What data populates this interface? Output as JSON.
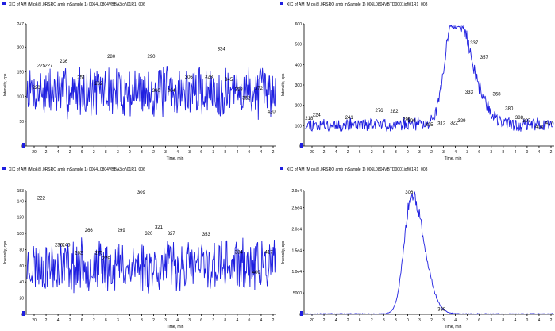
{
  "chart_data": [
    {
      "type": "line",
      "title": "XIC of AM (M pk@.0RSRO amb mSample 1) 0064L0804VBBA3jof\\01R1_006",
      "xlabel": "Time, min",
      "ylabel": "Intensity, cps",
      "ylim": [
        0,
        247
      ],
      "yticks": [
        "247",
        "200",
        "150",
        "100",
        "50",
        "0"
      ],
      "ytick_values": [
        247,
        200,
        150,
        100,
        50,
        0
      ],
      "xticks": [
        "20",
        "2",
        "4",
        "2",
        "6",
        "2",
        "8",
        "3",
        "0",
        "3",
        "2",
        "3",
        "4",
        "3",
        "6",
        "3",
        "8",
        "4",
        "0",
        "4",
        "2"
      ],
      "peak_labels": [
        "220",
        "225",
        "227",
        "236",
        "251",
        "262",
        "280",
        "290",
        "300",
        "304",
        "306",
        "328",
        "334",
        "345",
        "358",
        "362",
        "372",
        "420"
      ],
      "peak_label_x": [
        0.04,
        0.06,
        0.09,
        0.15,
        0.22,
        0.29,
        0.34,
        0.5,
        0.52,
        0.58,
        0.65,
        0.73,
        0.78,
        0.81,
        0.85,
        0.88,
        0.93,
        0.98
      ],
      "peak_label_y": [
        112,
        156,
        156,
        165,
        132,
        120,
        175,
        175,
        106,
        106,
        133,
        134,
        190,
        128,
        108,
        91,
        111,
        63
      ],
      "series": [
        {
          "noise_mean": 110,
          "noise_amp": 45,
          "points": 420,
          "seed": 7
        }
      ]
    },
    {
      "type": "line",
      "title": "XIC of AM (M pk@.0RSRO amb mSample 1) 006L0804VBTD0001jof\\01R1_008",
      "xlabel": "Time, min",
      "ylabel": "Intensity, cps",
      "ylim": [
        0,
        600
      ],
      "yticks": [
        "600",
        "500",
        "400",
        "300",
        "200",
        "100",
        "0"
      ],
      "ytick_values": [
        600,
        500,
        400,
        300,
        200,
        100,
        0
      ],
      "xticks": [
        "20",
        "2",
        "4",
        "2",
        "6",
        "2",
        "8",
        "3",
        "0",
        "3",
        "2",
        "3",
        "4",
        "3",
        "6",
        "3",
        "8",
        "4",
        "0",
        "4",
        "2"
      ],
      "peak_labels": [
        "218",
        "224",
        "241",
        "276",
        "282",
        "295",
        "300",
        "305",
        "312",
        "322",
        "329",
        "333",
        "337",
        "357",
        "368",
        "380",
        "388",
        "397",
        "403",
        "417"
      ],
      "peak_label_x": [
        0.02,
        0.05,
        0.18,
        0.3,
        0.36,
        0.41,
        0.43,
        0.5,
        0.55,
        0.6,
        0.63,
        0.66,
        0.68,
        0.72,
        0.77,
        0.82,
        0.86,
        0.89,
        0.94,
        0.98
      ],
      "peak_label_y": [
        120,
        138,
        125,
        160,
        155,
        115,
        110,
        90,
        95,
        100,
        110,
        250,
        490,
        420,
        240,
        170,
        125,
        110,
        80,
        100
      ],
      "series": [
        {
          "noise_mean": 105,
          "noise_amp": 28,
          "peak_center": 0.6,
          "peak_height": 560,
          "peak_width": 0.035,
          "tail": 0.07,
          "points": 420,
          "seed": 11
        }
      ]
    },
    {
      "type": "line",
      "title": "XIC of AM (M pk@.0RSRO amb mSample 1) 0064L0804VBBA3jof\\01R1_006",
      "xlabel": "Time, min",
      "ylabel": "Intensity, cps",
      "ylim": [
        0,
        153
      ],
      "yticks": [
        "153",
        "140",
        "120",
        "100",
        "80",
        "60",
        "40",
        "20",
        "0"
      ],
      "ytick_values": [
        153,
        140,
        120,
        100,
        80,
        60,
        40,
        20,
        0
      ],
      "xticks": [
        "20",
        "2",
        "4",
        "2",
        "6",
        "2",
        "8",
        "3",
        "0",
        "3",
        "2",
        "3",
        "4",
        "3",
        "6",
        "3",
        "8",
        "4",
        "0",
        "4",
        "2"
      ],
      "peak_labels": [
        "222",
        "236",
        "245",
        "262",
        "266",
        "275",
        "279",
        "299",
        "309",
        "320",
        "321",
        "327",
        "353",
        "384",
        "400",
        "417"
      ],
      "peak_label_x": [
        0.06,
        0.13,
        0.16,
        0.21,
        0.25,
        0.29,
        0.32,
        0.38,
        0.46,
        0.49,
        0.53,
        0.58,
        0.72,
        0.85,
        0.92,
        0.97
      ],
      "peak_label_y": [
        140,
        82,
        82,
        72,
        100,
        72,
        65,
        100,
        148,
        96,
        104,
        96,
        95,
        73,
        48,
        73
      ],
      "series": [
        {
          "noise_mean": 60,
          "noise_amp": 28,
          "points": 420,
          "seed": 23
        }
      ]
    },
    {
      "type": "line",
      "title": "XIC of AM (M pk@.0RSRO amb mSample 1) 006L0804VBTD0001jof\\01R1_008",
      "xlabel": "Time, min",
      "ylabel": "Intensity, cps",
      "ylim": [
        0,
        29000
      ],
      "yticks": [
        "2.9e4",
        "2.5e4",
        "2.0e4",
        "1.5e4",
        "1.0e4",
        "5000",
        "0"
      ],
      "ytick_values": [
        29000,
        25000,
        20000,
        15000,
        10000,
        5000,
        0
      ],
      "xticks": [
        "20",
        "2",
        "4",
        "2",
        "6",
        "2",
        "8",
        "3",
        "0",
        "3",
        "2",
        "3",
        "4",
        "3",
        "6",
        "3",
        "8",
        "4",
        "0",
        "4",
        "2"
      ],
      "peak_labels": [
        "306",
        "338"
      ],
      "peak_label_x": [
        0.42,
        0.55
      ],
      "peak_label_y": [
        28000,
        500
      ],
      "series": [
        {
          "noise_mean": 120,
          "noise_amp": 80,
          "peak_center": 0.43,
          "peak_height": 28500,
          "peak_width": 0.03,
          "tail": 0.05,
          "points": 420,
          "seed": 3
        }
      ]
    }
  ]
}
